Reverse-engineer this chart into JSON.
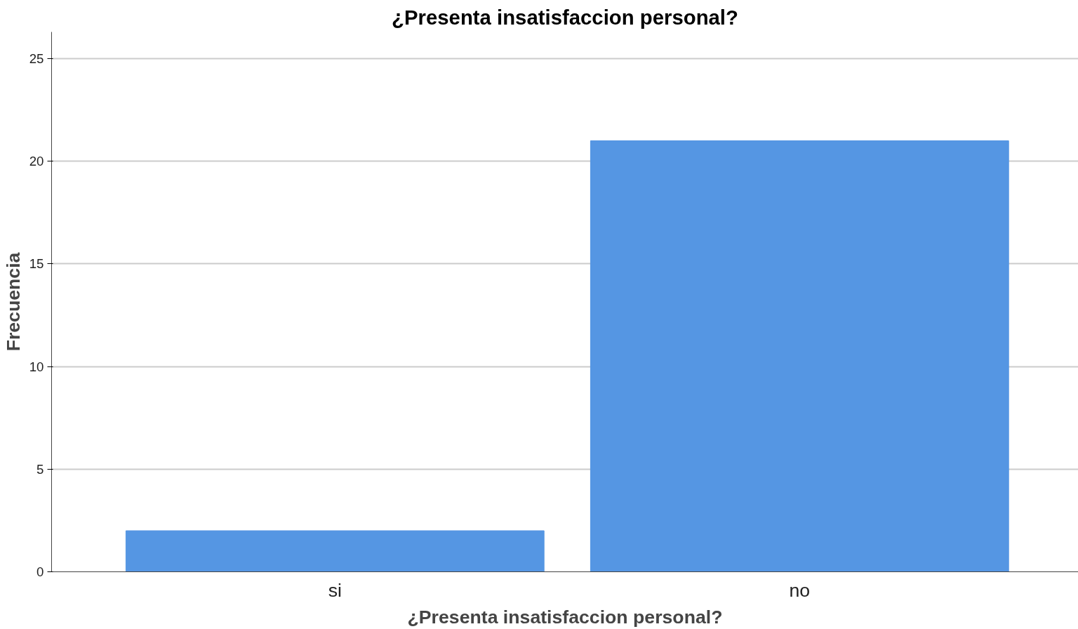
{
  "chart_data": {
    "type": "bar",
    "title": "¿Presenta insatisfaccion personal?",
    "xlabel": "¿Presenta insatisfaccion personal?",
    "ylabel": "Frecuencia",
    "categories": [
      "si",
      "no"
    ],
    "values": [
      2,
      21
    ],
    "color": "#5596e3",
    "ylim": [
      0,
      26.3
    ],
    "yticks": [
      0,
      5,
      10,
      15,
      20,
      25
    ],
    "grid": "y"
  }
}
